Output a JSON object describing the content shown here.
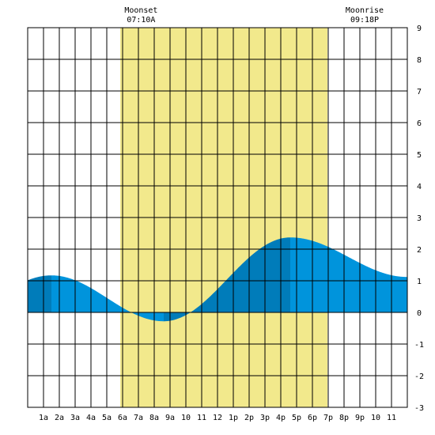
{
  "chart_data": {
    "type": "area",
    "title": "",
    "xlabel": "",
    "ylabel": "",
    "xlim": [
      0,
      24
    ],
    "ylim": [
      -3,
      9
    ],
    "grid": true,
    "x_tick_labels": [
      "1a",
      "2a",
      "3a",
      "4a",
      "5a",
      "6a",
      "7a",
      "8a",
      "9a",
      "10",
      "11",
      "12",
      "1p",
      "2p",
      "3p",
      "4p",
      "5p",
      "6p",
      "7p",
      "8p",
      "9p",
      "10",
      "11"
    ],
    "y_tick_labels": [
      "-3",
      "-2",
      "-1",
      "0",
      "1",
      "2",
      "3",
      "4",
      "5",
      "6",
      "7",
      "8",
      "9"
    ],
    "daylight_band": {
      "start_hour": 5.85,
      "end_hour": 18.95
    },
    "moon_events": [
      {
        "label": "Moonset",
        "time": "07:10A",
        "hour": 7.17
      },
      {
        "label": "Moonrise",
        "time": "09:18P",
        "hour": 21.3
      }
    ],
    "tide_extremes": [
      {
        "hour": 1.5,
        "height": 1.17
      },
      {
        "hour": 8.6,
        "height": -0.28
      },
      {
        "hour": 16.6,
        "height": 2.37
      },
      {
        "hour": 24.0,
        "height": 1.12
      }
    ],
    "colors": {
      "daylight": "#f2e98c",
      "tide_light": "#0094dc",
      "tide_dark": "#007cba",
      "grid": "#000000",
      "background": "#ffffff"
    }
  }
}
